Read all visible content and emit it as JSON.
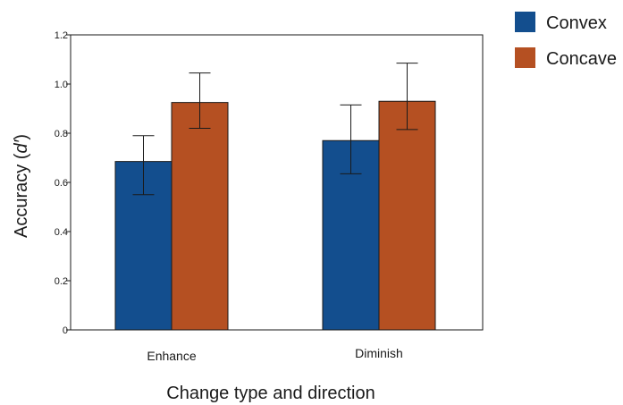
{
  "chart_data": {
    "type": "bar",
    "title": "",
    "xlabel": "Change type and direction",
    "ylabel": "Accuracy (d′)",
    "ylabel_parts": {
      "prefix": "Accuracy (",
      "italic": "d′",
      "suffix": ")"
    },
    "categories": [
      "Enhance",
      "Diminish"
    ],
    "ylim": [
      0,
      1.2
    ],
    "yticks": [
      0,
      0.2,
      0.4,
      0.6,
      0.8,
      1.0,
      1.2
    ],
    "ytick_labels": [
      "0",
      "0.2",
      "0.4",
      "0.6",
      "0.8",
      "1.0",
      "1.2"
    ],
    "grid": false,
    "legend_position": "top-right, outside plot",
    "series": [
      {
        "name": "Convex",
        "color": "#134e8e",
        "values": [
          0.685,
          0.77
        ],
        "err_low": [
          0.55,
          0.635
        ],
        "err_high": [
          0.79,
          0.915
        ]
      },
      {
        "name": "Concave",
        "color": "#b55022",
        "values": [
          0.925,
          0.93
        ],
        "err_low": [
          0.82,
          0.815
        ],
        "err_high": [
          1.045,
          1.085
        ]
      }
    ]
  }
}
